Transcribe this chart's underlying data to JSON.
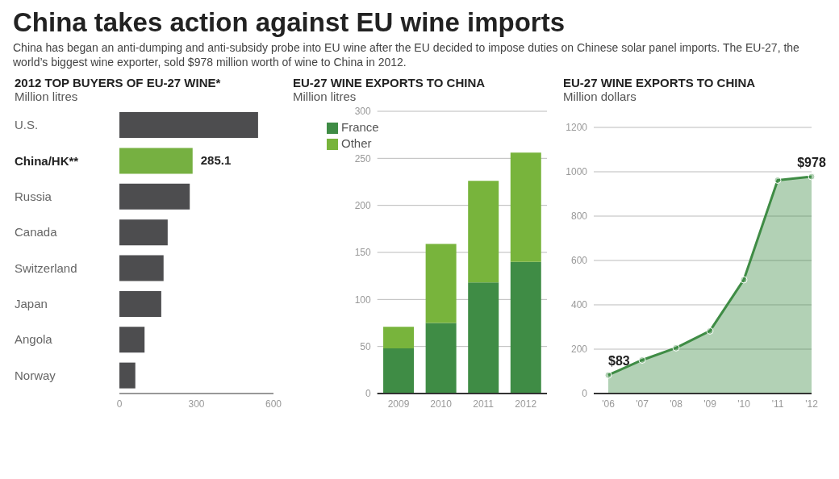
{
  "chart_data": [
    {
      "type": "other",
      "title": "China takes action against EU wine imports",
      "subtitle": "China has began an anti-dumping and anti-subsidy probe into EU wine after the EU decided to impose duties on Chinese solar panel imports. The EU-27, the world’s biggest wine exporter, sold $978 million worth of wine to China in 2012."
    },
    {
      "type": "bar",
      "orientation": "horizontal",
      "title": "2012 TOP BUYERS OF EU-27 WINE*",
      "subtitle": "Million litres",
      "categories": [
        "U.S.",
        "China/HK**",
        "Russia",
        "Canada",
        "Switzerland",
        "Japan",
        "Angola",
        "Norway"
      ],
      "values": [
        540,
        285.1,
        274,
        188,
        172,
        163,
        98,
        62
      ],
      "colors": [
        "#4d4d4f",
        "#76b041",
        "#4d4d4f",
        "#4d4d4f",
        "#4d4d4f",
        "#4d4d4f",
        "#4d4d4f",
        "#4d4d4f"
      ],
      "value_labels": [
        null,
        "285.1",
        null,
        null,
        null,
        null,
        null,
        null
      ],
      "xlim": [
        0,
        600
      ],
      "xticks": [
        0,
        300,
        600
      ],
      "grid": false
    },
    {
      "type": "bar",
      "stacked": true,
      "title": "EU-27 WINE EXPORTS TO CHINA",
      "subtitle": "Million litres",
      "categories": [
        "2009",
        "2010",
        "2011",
        "2012"
      ],
      "series": [
        {
          "name": "France",
          "color": "#3f8c45",
          "values": [
            48,
            75,
            118,
            140
          ]
        },
        {
          "name": "Other",
          "color": "#78b43c",
          "values": [
            23,
            84,
            108,
            116
          ]
        }
      ],
      "ylim": [
        0,
        300
      ],
      "yticks": [
        0,
        50,
        100,
        150,
        200,
        250,
        300
      ],
      "grid": "y",
      "legend": "top left"
    },
    {
      "type": "area",
      "title": "EU-27 WINE EXPORTS TO CHINA",
      "subtitle": "Million dollars",
      "categories": [
        "'06",
        "'07",
        "'08",
        "'09",
        "'10",
        "'11",
        "'12"
      ],
      "series": [
        {
          "color": "#3f8c45",
          "values": [
            83,
            151,
            206,
            282,
            513,
            962,
            978
          ],
          "value_labels": [
            "$83",
            null,
            null,
            null,
            null,
            null,
            "$978"
          ]
        }
      ],
      "ylim": [
        0,
        1200
      ],
      "yticks": [
        0,
        200,
        400,
        600,
        800,
        1000,
        1200
      ],
      "grid": "y",
      "marker": "circle"
    }
  ]
}
